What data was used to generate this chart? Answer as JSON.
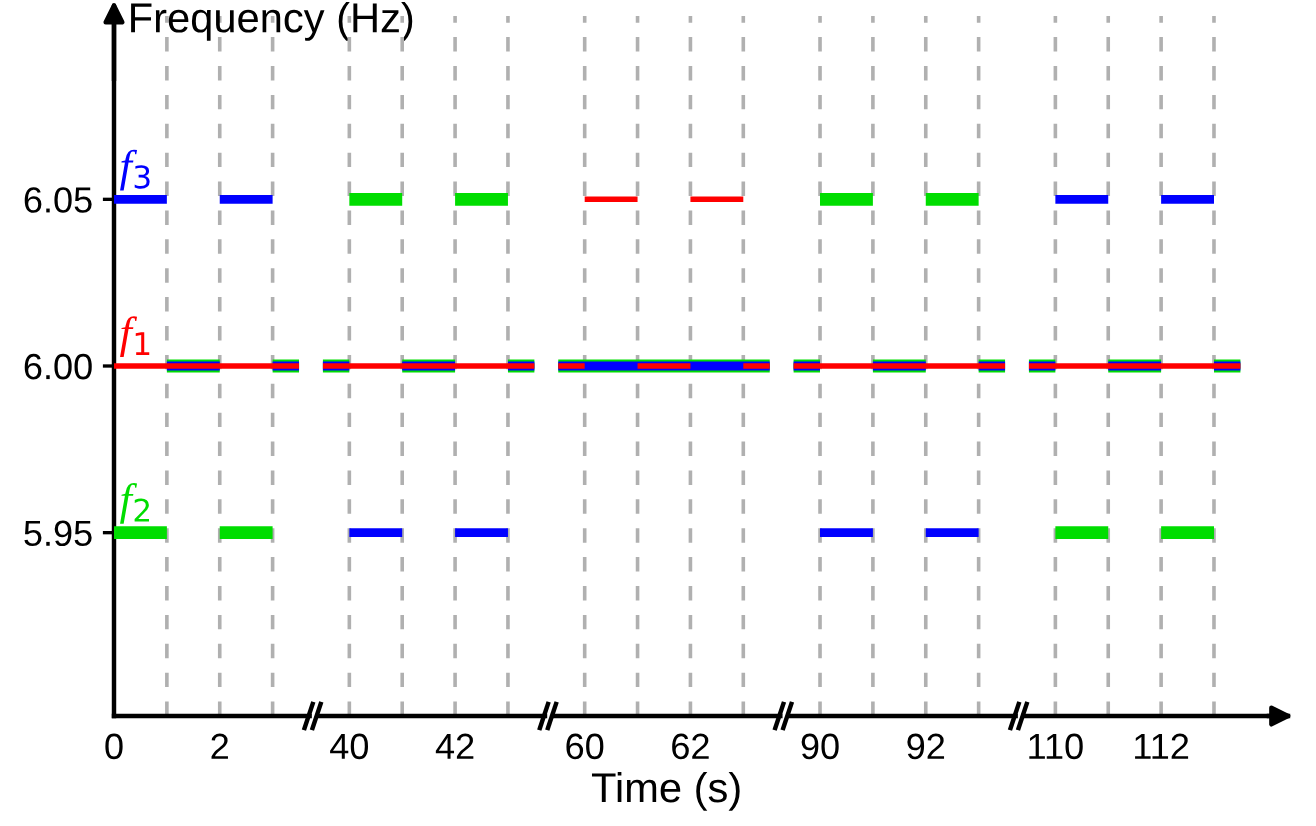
{
  "chart_data": [
    {
      "type": "line",
      "ylabel": "Frequency (Hz)",
      "xlim": [
        0,
        3.7
      ],
      "ylim": [
        5.895,
        6.105
      ],
      "yticks": [
        5.95,
        {
          "value": 6.0,
          "label": "6.00"
        },
        6.05
      ],
      "xticks": [
        0,
        {
          "value": 1,
          "label": null
        },
        2,
        {
          "value": 3,
          "label": null
        }
      ],
      "grid": "x",
      "line_style": "solid",
      "series": [
        {
          "name": "f$_{2}$",
          "color": "#00dd00",
          "x": [
            0,
            1,
            null,
            1,
            2,
            null,
            2,
            3,
            null,
            3,
            3.5
          ],
          "values": [
            5.95,
            5.95,
            null,
            6.0,
            6.0,
            null,
            5.95,
            5.95,
            null,
            6.0,
            6.0
          ]
        },
        {
          "name": "f$_{3}$",
          "color": "#0000ff",
          "x": [
            0,
            1,
            null,
            1,
            2,
            null,
            2,
            3,
            null,
            3,
            3.5
          ],
          "values": [
            6.05,
            6.05,
            null,
            6.0,
            6.0,
            null,
            6.05,
            6.05,
            null,
            6.0,
            6.0
          ]
        },
        {
          "name": "f$_{1}$",
          "color": "#ff0000",
          "x": [
            0,
            3.5
          ],
          "values": [
            6.0,
            6.0
          ]
        }
      ]
    },
    {
      "type": "line",
      "xlim": [
        39.4,
        43.7
      ],
      "ylim": [
        5.895,
        6.105
      ],
      "tick_labels": "x",
      "xticks": [
        40,
        {
          "value": 41,
          "label": null
        },
        42,
        {
          "value": 43,
          "label": null
        }
      ],
      "grid": "x",
      "line_style": "solid",
      "series": [
        {
          "color": "#00dd00",
          "x": [
            39.5,
            40,
            null,
            40,
            41,
            null,
            41,
            42,
            null,
            42,
            43,
            null,
            43,
            43.5
          ],
          "values": [
            6.0,
            6.0,
            null,
            6.05,
            6.05,
            null,
            6.0,
            6.0,
            null,
            6.05,
            6.05,
            null,
            6.0,
            6.0
          ]
        },
        {
          "color": "#0000ff",
          "x": [
            39.5,
            40,
            null,
            40,
            41,
            null,
            41,
            42,
            null,
            42,
            43,
            null,
            43,
            43.5
          ],
          "values": [
            6.0,
            6.0,
            null,
            5.95,
            5.95,
            null,
            6.0,
            6.0,
            null,
            5.95,
            5.95,
            null,
            6.0,
            6.0
          ]
        },
        {
          "color": "#ff0000",
          "x": [
            39.5,
            43.5
          ],
          "values": [
            6.0,
            6.0
          ]
        }
      ]
    },
    {
      "type": "line",
      "xlabel": "Time (s)",
      "xlim": [
        59.4,
        63.7
      ],
      "ylim": [
        5.895,
        6.105
      ],
      "tick_labels": "x",
      "xticks": [
        60,
        {
          "value": 61,
          "label": null
        },
        62,
        {
          "value": 63,
          "label": null
        }
      ],
      "grid": "x",
      "line_style": "solid",
      "series": [
        {
          "color": "#00dd00",
          "x": [
            59.5,
            63.5
          ],
          "values": [
            6.0,
            6.0
          ]
        },
        {
          "color": "#0000ff",
          "x": [
            59.5,
            63.5
          ],
          "values": [
            6.0,
            6.0
          ]
        },
        {
          "color": "#ff0000",
          "x": [
            59.5,
            60,
            null,
            60,
            61,
            null,
            61,
            62,
            null,
            62,
            63,
            null,
            63,
            63.5
          ],
          "values": [
            6.0,
            6.0,
            null,
            6.05,
            6.05,
            null,
            6.0,
            6.0,
            null,
            6.05,
            6.05,
            null,
            6.0,
            6.0
          ]
        }
      ]
    },
    {
      "type": "line",
      "xlim": [
        89.4,
        93.7
      ],
      "ylim": [
        5.895,
        6.105
      ],
      "tick_labels": "x",
      "xticks": [
        90,
        {
          "value": 91,
          "label": null
        },
        92,
        {
          "value": 93,
          "label": null
        }
      ],
      "grid": "x",
      "line_style": "solid",
      "series": [
        {
          "color": "#00dd00",
          "x": [
            89.5,
            90,
            null,
            90,
            91,
            null,
            91,
            92,
            null,
            92,
            93,
            null,
            93,
            93.5
          ],
          "values": [
            6.0,
            6.0,
            null,
            6.05,
            6.05,
            null,
            6.0,
            6.0,
            null,
            6.05,
            6.05,
            null,
            6.0,
            6.0
          ]
        },
        {
          "color": "#0000ff",
          "x": [
            89.5,
            90,
            null,
            90,
            91,
            null,
            91,
            92,
            null,
            92,
            93,
            null,
            93,
            93.5
          ],
          "values": [
            6.0,
            6.0,
            null,
            5.95,
            5.95,
            null,
            6.0,
            6.0,
            null,
            5.95,
            5.95,
            null,
            6.0,
            6.0
          ]
        },
        {
          "color": "#ff0000",
          "x": [
            89.5,
            93.5
          ],
          "values": [
            6.0,
            6.0
          ]
        }
      ]
    },
    {
      "type": "line",
      "xlim": [
        109.4,
        114.4
      ],
      "ylim": [
        5.895,
        6.105
      ],
      "tick_labels": "x",
      "xticks": [
        110,
        {
          "value": 111,
          "label": null
        },
        112,
        {
          "value": 113,
          "label": null
        }
      ],
      "grid": "x",
      "line_style": "solid",
      "series": [
        {
          "color": "#00dd00",
          "x": [
            109.5,
            110,
            null,
            110,
            111,
            null,
            111,
            112,
            null,
            112,
            113,
            null,
            113,
            113.5
          ],
          "values": [
            6.0,
            6.0,
            null,
            5.95,
            5.95,
            null,
            6.0,
            6.0,
            null,
            5.95,
            5.95,
            null,
            6.0,
            6.0
          ]
        },
        {
          "color": "#0000ff",
          "x": [
            109.5,
            110,
            null,
            110,
            111,
            null,
            111,
            112,
            null,
            112,
            113,
            null,
            113,
            113.5
          ],
          "values": [
            6.0,
            6.0,
            null,
            6.05,
            6.05,
            null,
            6.0,
            6.0,
            null,
            6.05,
            6.05,
            null,
            6.0,
            6.0
          ]
        },
        {
          "color": "#ff0000",
          "x": [
            109.5,
            113.5
          ],
          "values": [
            6.0,
            6.0
          ]
        }
      ]
    }
  ]
}
